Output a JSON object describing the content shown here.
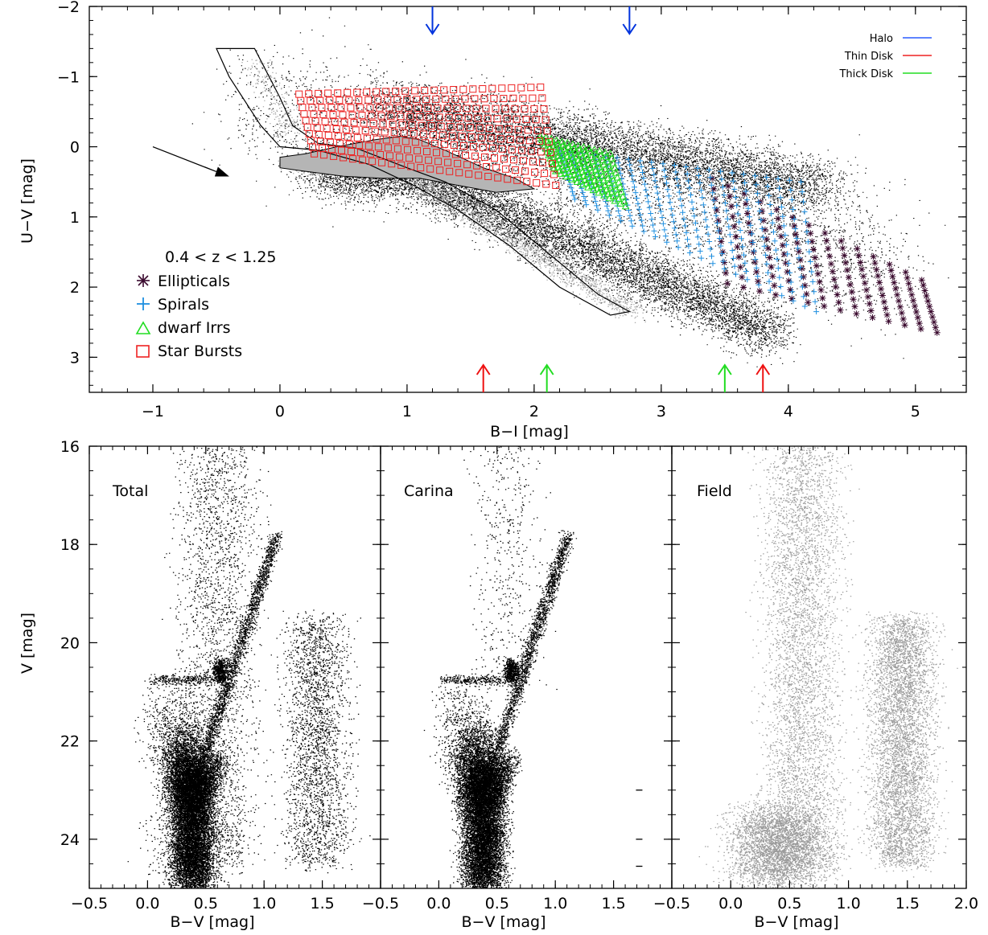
{
  "chart_data": [
    {
      "type": "scatter",
      "xlabel": "B−I [mag]",
      "ylabel": "U−V [mag]",
      "xlim": [
        -1.5,
        5.4
      ],
      "ylim": [
        3.5,
        -2.0
      ],
      "xticks": [
        -1,
        0,
        1,
        2,
        3,
        4,
        5
      ],
      "xtick_labels": [
        "−1",
        "0",
        "1",
        "2",
        "3",
        "4",
        "5"
      ],
      "yticks": [
        -2,
        -1,
        0,
        1,
        2,
        3
      ],
      "ytick_labels": [
        "−2",
        "−1",
        "0",
        "1",
        "2",
        "3"
      ],
      "annotation": "0.4 < z < 1.25",
      "legend_galaxies": [
        {
          "label": "Ellipticals",
          "marker": "asterisk",
          "color": "#3a0a2e"
        },
        {
          "label": "Spirals",
          "marker": "plus",
          "color": "#1e8fe0"
        },
        {
          "label": "dwarf Irrs",
          "marker": "triangle",
          "color": "#22dd22"
        },
        {
          "label": "Star Bursts",
          "marker": "square",
          "color": "#ee2222"
        }
      ],
      "legend_populations": [
        {
          "label": "Halo",
          "color": "#2a5cff"
        },
        {
          "label": "Thin Disk",
          "color": "#ee2222"
        },
        {
          "label": "Thick Disk",
          "color": "#22dd22"
        }
      ],
      "arrows_top": [
        {
          "x": 1.2,
          "color": "#0033dd"
        },
        {
          "x": 2.75,
          "color": "#0033dd"
        }
      ],
      "arrows_bottom": [
        {
          "x": 1.6,
          "color": "#ee1111"
        },
        {
          "x": 2.1,
          "color": "#22dd22"
        },
        {
          "x": 3.5,
          "color": "#22dd22"
        },
        {
          "x": 3.8,
          "color": "#ee1111"
        }
      ],
      "reddening_vector": {
        "from": [
          -1.0,
          0.0
        ],
        "to": [
          -0.45,
          0.4
        ]
      },
      "stellar_locus_outline": [
        [
          -0.5,
          -1.4
        ],
        [
          -0.2,
          -1.4
        ],
        [
          0.0,
          -0.7
        ],
        [
          0.1,
          -0.3
        ],
        [
          0.3,
          -0.05
        ],
        [
          0.6,
          0.02
        ],
        [
          1.0,
          0.3
        ],
        [
          1.3,
          0.5
        ],
        [
          1.7,
          0.9
        ],
        [
          2.1,
          1.5
        ],
        [
          2.5,
          2.1
        ],
        [
          2.75,
          2.35
        ],
        [
          2.6,
          2.4
        ],
        [
          2.2,
          2.0
        ],
        [
          1.8,
          1.4
        ],
        [
          1.4,
          0.9
        ],
        [
          1.05,
          0.55
        ],
        [
          0.7,
          0.25
        ],
        [
          0.3,
          0.05
        ],
        [
          0.0,
          0.0
        ],
        [
          -0.15,
          -0.3
        ],
        [
          -0.4,
          -1.0
        ],
        [
          -0.5,
          -1.4
        ]
      ],
      "grey_region": [
        [
          0.0,
          0.15
        ],
        [
          0.2,
          0.1
        ],
        [
          0.45,
          0.0
        ],
        [
          0.75,
          -0.1
        ],
        [
          0.95,
          -0.15
        ],
        [
          1.1,
          -0.1
        ],
        [
          1.3,
          0.05
        ],
        [
          1.6,
          0.3
        ],
        [
          1.85,
          0.45
        ],
        [
          2.0,
          0.6
        ],
        [
          1.7,
          0.65
        ],
        [
          1.4,
          0.55
        ],
        [
          1.1,
          0.45
        ],
        [
          0.8,
          0.45
        ],
        [
          0.5,
          0.42
        ],
        [
          0.2,
          0.35
        ],
        [
          0.0,
          0.3
        ]
      ],
      "series": [
        {
          "name": "Star Bursts",
          "x_range": [
            0.15,
            2.05
          ],
          "y_at_x_range": [
            [
              -0.75,
              -0.85
            ],
            [
              0.1,
              0.55
            ]
          ]
        },
        {
          "name": "dwarf Irrs",
          "x_range": [
            2.05,
            2.6
          ],
          "y_at_x_range": [
            [
              -0.15,
              0.1
            ],
            [
              0.35,
              0.85
            ]
          ]
        },
        {
          "name": "Spirals",
          "x_range": [
            2.2,
            4.1
          ],
          "y_at_x_range": [
            [
              0.05,
              0.5
            ],
            [
              0.75,
              2.35
            ]
          ]
        },
        {
          "name": "Ellipticals",
          "x_range": [
            3.4,
            5.05
          ],
          "y_at_x_range": [
            [
              0.45,
              1.9
            ],
            [
              1.95,
              2.65
            ]
          ]
        }
      ]
    },
    {
      "type": "scatter",
      "name": "Total",
      "xlabel": "B−V [mag]",
      "ylabel": "V [mag]",
      "xlim": [
        -0.5,
        2.0
      ],
      "ylim": [
        25.0,
        16.0
      ],
      "xticks": [
        -0.5,
        0.0,
        0.5,
        1.0,
        1.5
      ],
      "xtick_labels": [
        "−0.5",
        "0.0",
        "0.5",
        "1.0",
        "1.5"
      ],
      "yticks": [
        16,
        18,
        20,
        22,
        24
      ],
      "ytick_labels": [
        "16",
        "18",
        "20",
        "22",
        "24"
      ],
      "color": "#000000"
    },
    {
      "type": "scatter",
      "name": "Carina",
      "xlabel": "B−V [mag]",
      "xlim": [
        -0.5,
        2.0
      ],
      "ylim": [
        25.0,
        16.0
      ],
      "xticks": [
        -0.5,
        0.0,
        0.5,
        1.0,
        1.5
      ],
      "xtick_labels": [
        "−0.5",
        "0.0",
        "0.5",
        "1.0",
        "1.5"
      ],
      "color": "#000000",
      "error_bars": [
        {
          "x": 1.72,
          "y": 23.0
        },
        {
          "x": 1.72,
          "y": 24.0
        },
        {
          "x": 1.72,
          "y": 24.55
        }
      ]
    },
    {
      "type": "scatter",
      "name": "Field",
      "xlabel": "B−V [mag]",
      "xlim": [
        -0.5,
        2.0
      ],
      "ylim": [
        25.0,
        16.0
      ],
      "xticks": [
        -0.5,
        0.0,
        0.5,
        1.0,
        1.5,
        2.0
      ],
      "xtick_labels": [
        "−0.5",
        "0.0",
        "0.5",
        "1.0",
        "1.5",
        "2.0"
      ],
      "color": "#9a9a9a"
    }
  ]
}
